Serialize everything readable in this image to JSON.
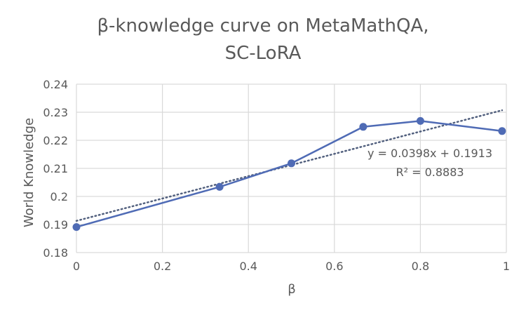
{
  "chart_data": {
    "type": "line",
    "title_lines": [
      "β-knowledge curve on MetaMathQA,",
      "SC-LoRA"
    ],
    "xlabel": "β",
    "ylabel": "World Knowledge",
    "xlim": [
      0,
      1
    ],
    "ylim": [
      0.18,
      0.24
    ],
    "x_ticks": [
      0,
      0.2,
      0.4,
      0.6,
      0.8,
      1
    ],
    "x_tick_labels": [
      "0",
      "0.2",
      "0.4",
      "0.6",
      "0.8",
      "1"
    ],
    "y_ticks": [
      0.18,
      0.19,
      0.2,
      0.21,
      0.22,
      0.23,
      0.24
    ],
    "y_tick_labels": [
      "0.18",
      "0.19",
      "0.2",
      "0.21",
      "0.22",
      "0.23",
      "0.24"
    ],
    "grid": true,
    "series": [
      {
        "x": [
          0,
          0.333,
          0.5,
          0.667,
          0.8,
          0.99
        ],
        "y": [
          0.1891,
          0.2034,
          0.2118,
          0.2248,
          0.2269,
          0.2233
        ],
        "color": "#4f6bb5"
      }
    ],
    "trendline": {
      "slope": 0.0398,
      "intercept": 0.1913,
      "x_range": [
        0,
        0.99
      ],
      "color": "#52607e",
      "equation": "y = 0.0398x + 0.1913",
      "r_squared": "R² = 0.8883"
    }
  }
}
